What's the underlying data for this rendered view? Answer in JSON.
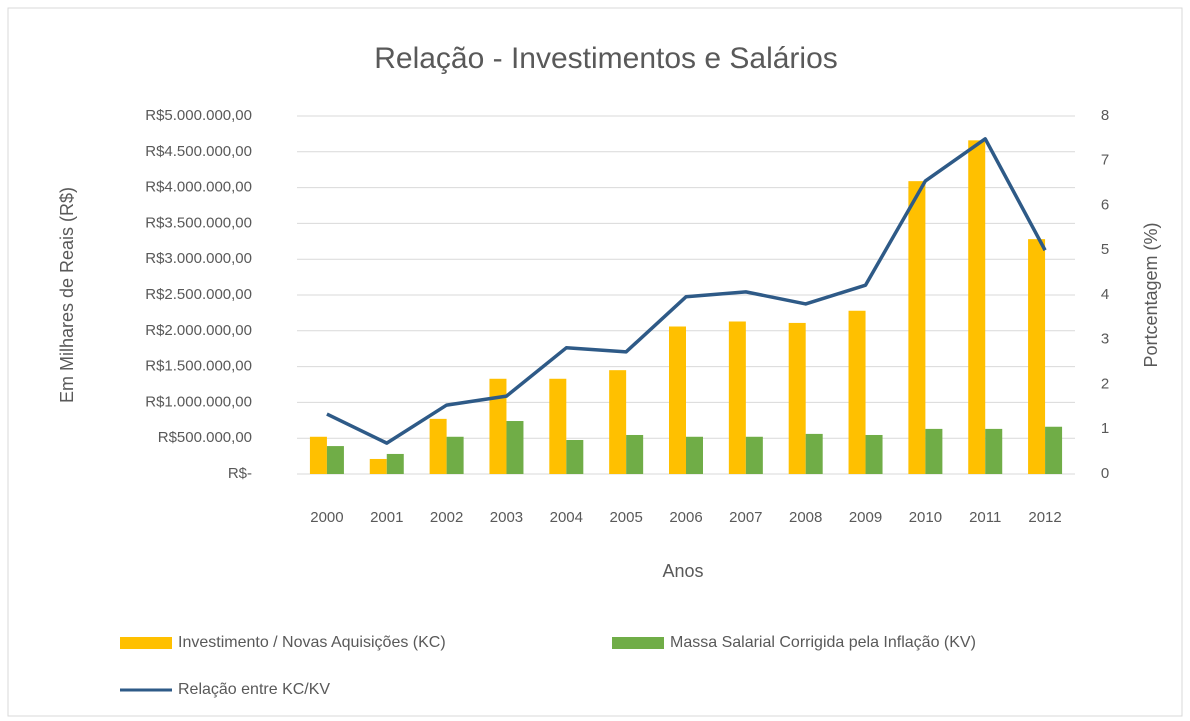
{
  "chart_data": {
    "type": "bar_line",
    "title": "Relação - Investimentos  e Salários",
    "x_label": "Anos",
    "y_label": "Em Milhares de Reais (R$)",
    "y2_label": "Portcentagem (%)",
    "categories": [
      "2000",
      "2001",
      "2002",
      "2003",
      "2004",
      "2005",
      "2006",
      "2007",
      "2008",
      "2009",
      "2010",
      "2011",
      "2012"
    ],
    "series": [
      {
        "name": "Investimento / Novas Aquisições (KC)",
        "type": "bar",
        "color": "#ffc000",
        "values": [
          520000,
          210000,
          770000,
          1330000,
          1330000,
          1450000,
          2060000,
          2130000,
          2110000,
          2280000,
          4090000,
          4660000,
          3280000
        ]
      },
      {
        "name": "Massa Salarial  Corrigida pela Inflação (KV)",
        "type": "bar",
        "color": "#70ad47",
        "values": [
          390000,
          280000,
          520000,
          740000,
          475000,
          545000,
          520000,
          520000,
          560000,
          545000,
          630000,
          630000,
          660000
        ]
      },
      {
        "name": "Relação entre KC/KV",
        "type": "line",
        "axis": "y2",
        "color": "#2e5a87",
        "values": [
          1.34,
          0.69,
          1.54,
          1.74,
          2.82,
          2.73,
          3.96,
          4.07,
          3.8,
          4.22,
          6.55,
          7.49,
          5.0
        ]
      }
    ],
    "ylim": [
      0,
      5000000
    ],
    "yticks": [
      {
        "value": 0,
        "label": "R$-"
      },
      {
        "value": 500000,
        "label": "R$500.000,00"
      },
      {
        "value": 1000000,
        "label": "R$1.000.000,00"
      },
      {
        "value": 1500000,
        "label": "R$1.500.000,00"
      },
      {
        "value": 2000000,
        "label": "R$2.000.000,00"
      },
      {
        "value": 2500000,
        "label": "R$2.500.000,00"
      },
      {
        "value": 3000000,
        "label": "R$3.000.000,00"
      },
      {
        "value": 3500000,
        "label": "R$3.500.000,00"
      },
      {
        "value": 4000000,
        "label": "R$4.000.000,00"
      },
      {
        "value": 4500000,
        "label": "R$4.500.000,00"
      },
      {
        "value": 5000000,
        "label": "R$5.000.000,00"
      }
    ],
    "y2lim": [
      0,
      8
    ],
    "y2ticks": [
      0,
      1,
      2,
      3,
      4,
      5,
      6,
      7,
      8
    ],
    "grid": true,
    "legend": "bottom"
  }
}
